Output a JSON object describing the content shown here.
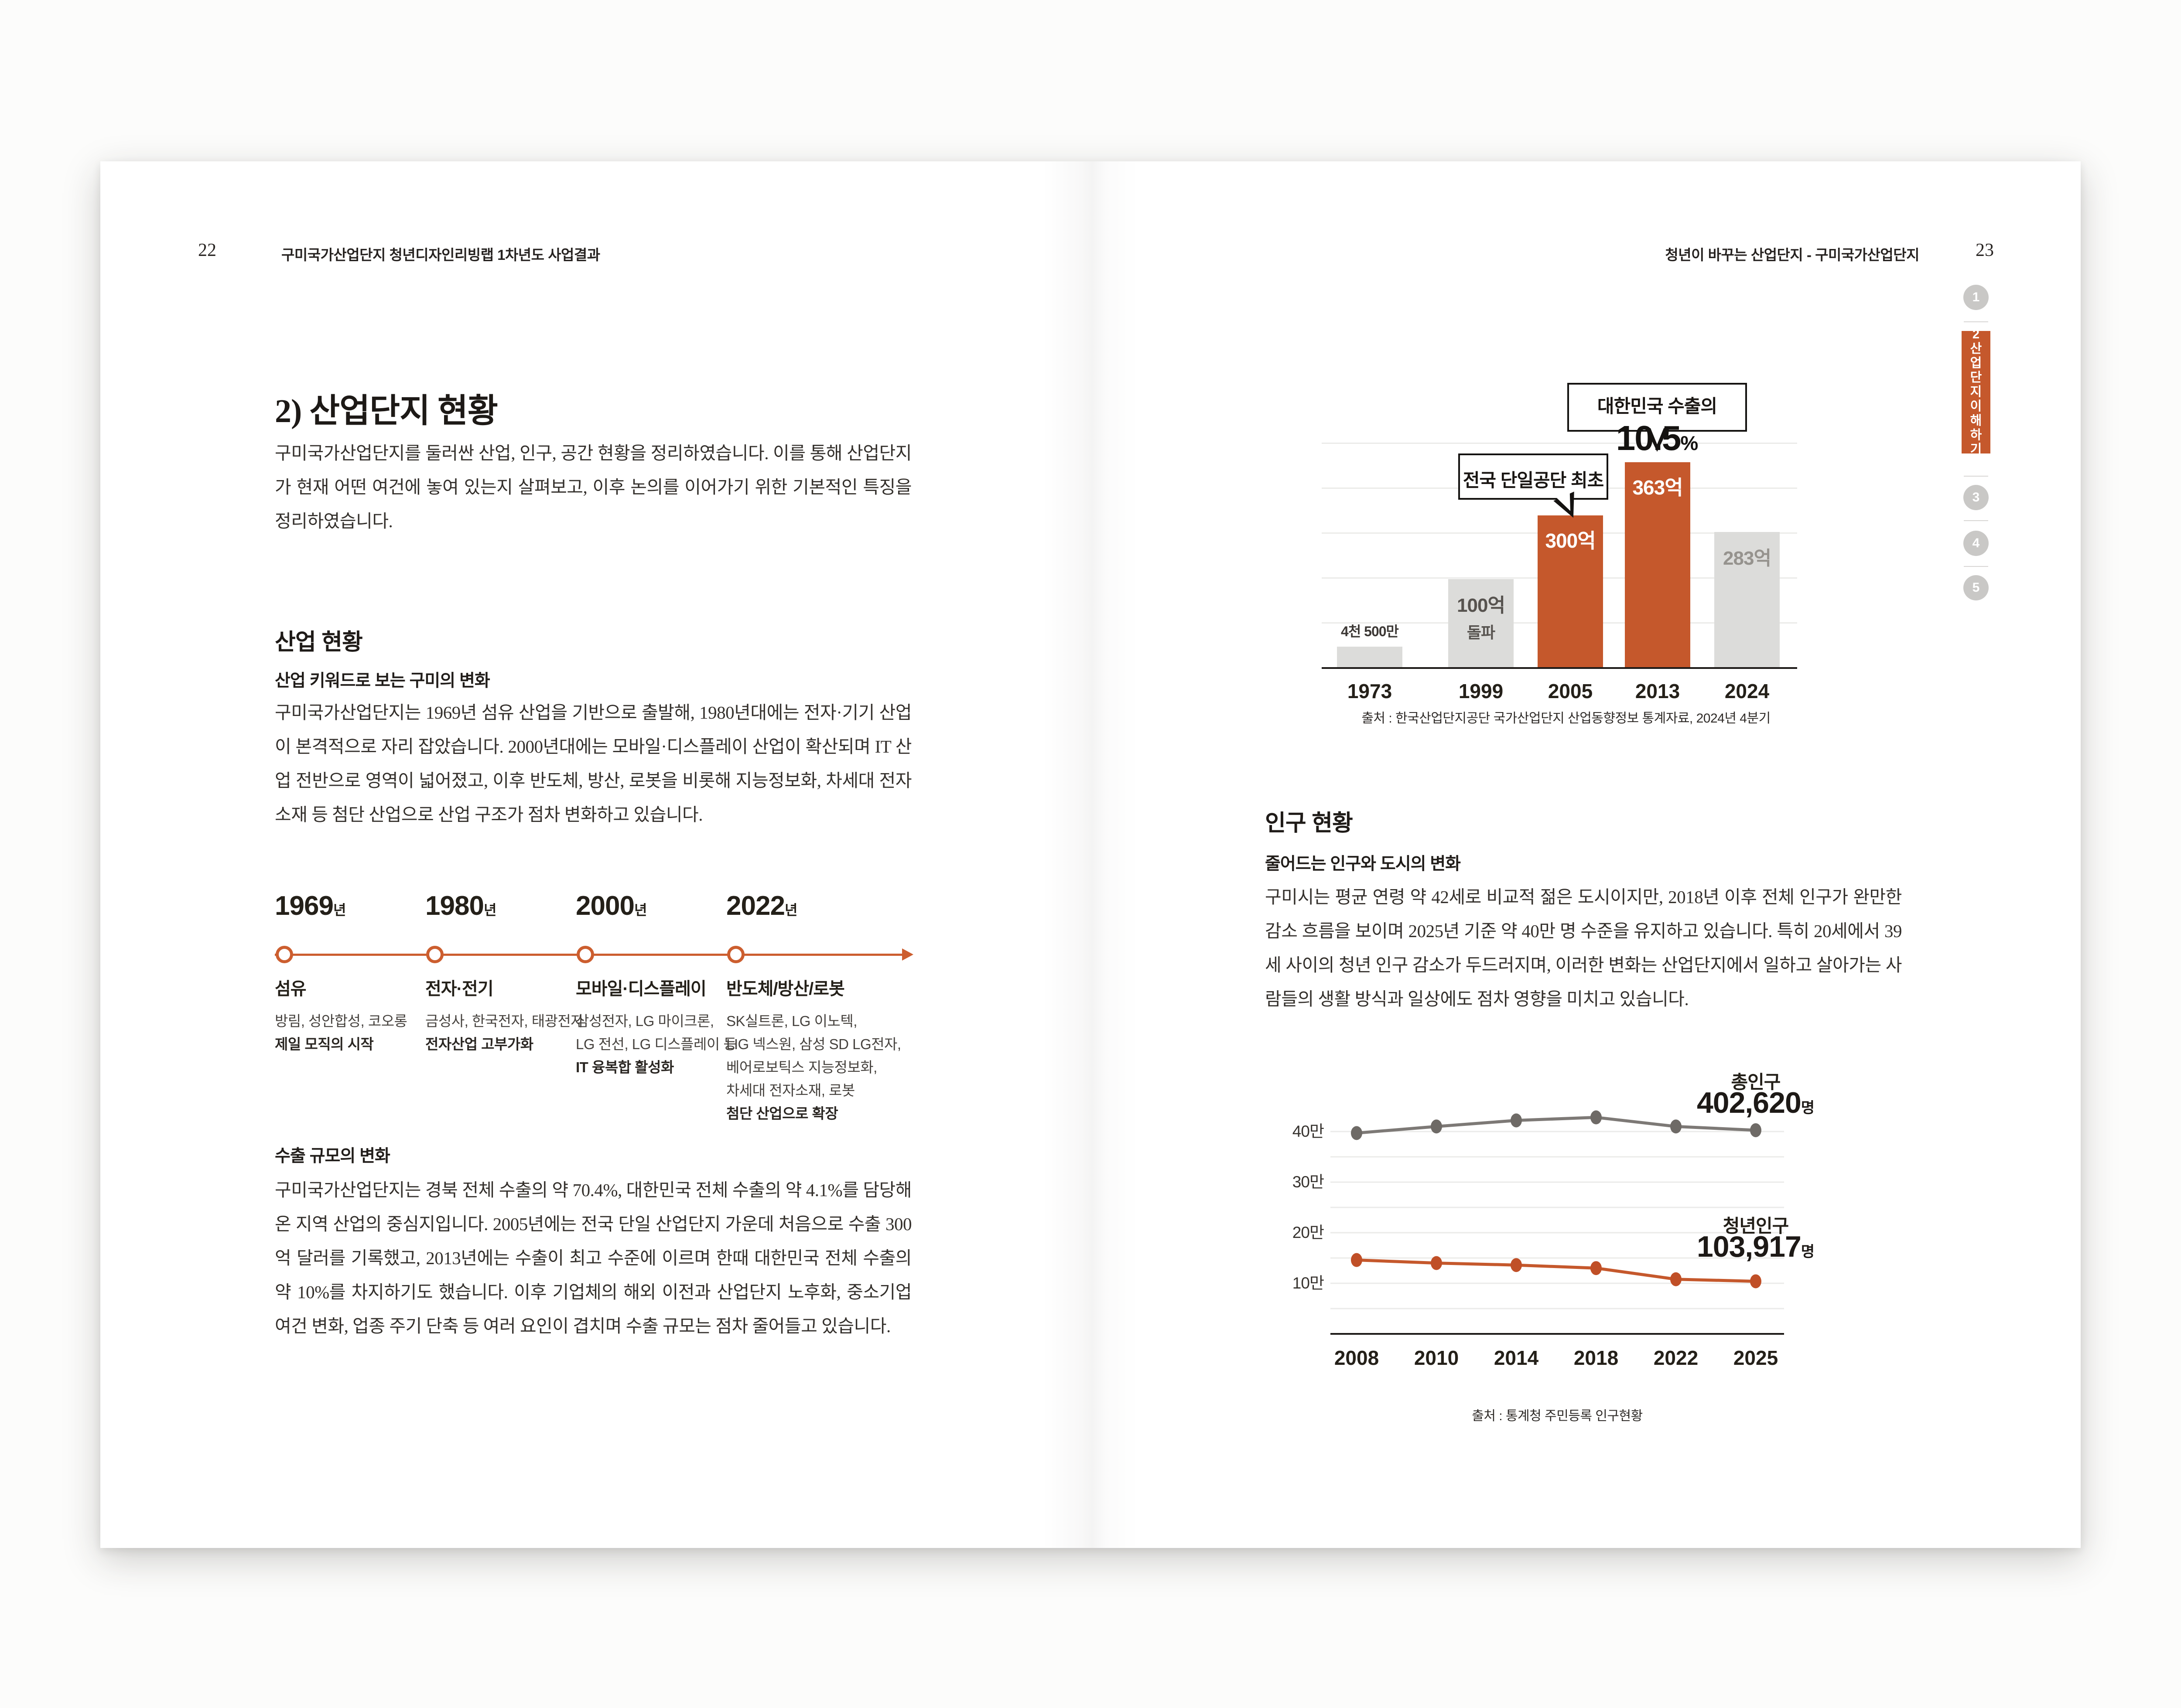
{
  "colors": {
    "accent": "#c5582c",
    "timeline_accent": "#cc5e2f",
    "bar_gray": "#dcdcda",
    "grid": "#ebebe9",
    "total_line": "#7d7976",
    "ink": "#1f1b18"
  },
  "left_page": {
    "page_number": "22",
    "running_header": "구미국가산업단지 청년디자인리빙랩 1차년도 사업결과",
    "section_title": "2) 산업단지 현황",
    "intro": "구미국가산업단지를 둘러싼 산업, 인구, 공간 현황을 정리하였습니다. 이를 통해 산업단지가 현재 어떤 여건에 놓여 있는지 살펴보고, 이후 논의를 이어가기 위한 기본적인 특징을 정리하였습니다.",
    "industry": {
      "heading": "산업 현황",
      "subheading": "산업 키워드로 보는 구미의 변화",
      "body": "구미국가산업단지는 1969년 섬유 산업을 기반으로 출발해, 1980년대에는 전자·기기 산업이 본격적으로 자리 잡았습니다. 2000년대에는 모바일·디스플레이 산업이 확산되며 IT 산업 전반으로 영역이 넓어졌고, 이후 반도체, 방산, 로봇을 비롯해 지능정보화, 차세대 전자소재 등 첨단 산업으로 산업 구조가 점차 변화하고 있습니다."
    },
    "timeline": [
      {
        "year": "1969",
        "year_suffix": "년",
        "keyword": "섬유",
        "lines": [
          "방림, 성안합성, 코오롱"
        ],
        "bold_line": "제일 모직의 시작"
      },
      {
        "year": "1980",
        "year_suffix": "년",
        "keyword": "전자·전기",
        "lines": [
          "금성사, 한국전자, 태광전자"
        ],
        "bold_line": "전자산업 고부가화"
      },
      {
        "year": "2000",
        "year_suffix": "년",
        "keyword": "모바일·디스플레이",
        "lines": [
          "삼성전자, LG 마이크론,",
          "LG 전선, LG 디스플레이 등"
        ],
        "bold_line": "IT 융복합 활성화"
      },
      {
        "year": "2022",
        "year_suffix": "년",
        "keyword": "반도체/방산/로봇",
        "lines": [
          "SK실트론, LG 이노텍,",
          "LIG 넥스원, 삼성 SD LG전자,",
          "베어로보틱스 지능정보화,",
          "차세대 전자소재, 로봇"
        ],
        "bold_line": "첨단 산업으로 확장"
      }
    ],
    "export": {
      "heading": "수출 규모의 변화",
      "body": "구미국가산업단지는 경북 전체 수출의 약 70.4%, 대한민국 전체 수출의 약 4.1%를 담당해 온 지역 산업의 중심지입니다. 2005년에는 전국 단일 산업단지 가운데 처음으로 수출 300억 달러를 기록했고, 2013년에는 수출이 최고 수준에 이르며 한때 대한민국 전체 수출의 약 10%를 차지하기도 했습니다. 이후 기업체의 해외 이전과 산업단지 노후화, 중소기업 여건 변화, 업종 주기 단축 등 여러 요인이 겹치며 수출 규모는 점차 줄어들고 있습니다."
    }
  },
  "right_page": {
    "page_number": "23",
    "running_header": "청년이 바꾸는 산업단지 - 구미국가산업단지",
    "side_nav": [
      {
        "type": "circle",
        "label": "1",
        "active": false
      },
      {
        "type": "tab",
        "label": "2 산업단지 이해하기",
        "active": true
      },
      {
        "type": "circle",
        "label": "3",
        "active": false
      },
      {
        "type": "circle",
        "label": "4",
        "active": false
      },
      {
        "type": "circle",
        "label": "5",
        "active": false
      }
    ],
    "population": {
      "heading": "인구 현황",
      "subheading": "줄어드는 인구와 도시의 변화",
      "body": "구미시는 평균 연령 약 42세로 비교적 젊은 도시이지만, 2018년 이후 전체 인구가 완만한 감소 흐름을 보이며 2025년 기준 약 40만 명 수준을 유지하고 있습니다. 특히 20세에서 39세 사이의 청년 인구 감소가 두드러지며, 이러한 변화는 산업단지에서 일하고 살아가는 사람들의 생활 방식과 일상에도 점차 영향을 미치고 있습니다."
    }
  },
  "chart_data": [
    {
      "id": "export-bar-chart",
      "type": "bar",
      "categories": [
        "1973",
        "1999",
        "2005",
        "2013",
        "2024"
      ],
      "values": [
        0.45,
        100,
        300,
        363,
        283
      ],
      "unit": "억 달러",
      "bar_labels": [
        "4천 500만",
        "100억",
        "300억",
        "363억",
        "283억"
      ],
      "bar_sublabels": [
        "",
        "돌파",
        "",
        "",
        ""
      ],
      "highlight": [
        false,
        false,
        true,
        true,
        false
      ],
      "bar_height_pct": [
        10,
        43,
        74,
        100,
        66
      ],
      "grid": true,
      "callouts": [
        {
          "text": "전국 단일공단 최초",
          "target": "2005"
        },
        {
          "text": "대한민국 수출의",
          "big_value": "10.5",
          "big_suffix": "%",
          "target": "2013"
        }
      ],
      "source": "출처 : 한국산업단지공단 국가산업단지 산업동향정보 통계자료, 2024년 4분기"
    },
    {
      "id": "population-line-chart",
      "type": "line",
      "x": [
        "2008",
        "2010",
        "2014",
        "2018",
        "2022",
        "2025"
      ],
      "ylim": [
        0,
        450000
      ],
      "grid_step": 50000,
      "ytick_labels": [
        "40만",
        "30만",
        "20만",
        "10만"
      ],
      "ytick_values": [
        400000,
        300000,
        200000,
        100000
      ],
      "series": [
        {
          "name": "총인구",
          "final_label": "402,620",
          "final_unit": "명",
          "color": "#7d7976",
          "marker_color": "#6e6a66",
          "values": [
            397000,
            410000,
            422000,
            428000,
            410000,
            402620
          ]
        },
        {
          "name": "청년인구",
          "final_label": "103,917",
          "final_unit": "명",
          "color": "#c5582c",
          "marker_color": "#c04f27",
          "values": [
            146000,
            140000,
            136000,
            130000,
            108000,
            103917
          ]
        }
      ],
      "legend_position": "right-inline",
      "source": "출처 : 통계청 주민등록 인구현황"
    }
  ]
}
